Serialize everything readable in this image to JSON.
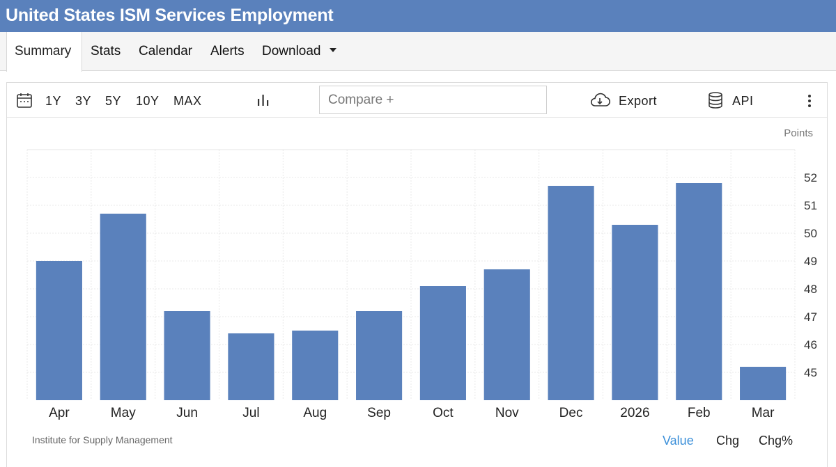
{
  "header": {
    "title": "United States ISM Services Employment"
  },
  "tabs": [
    {
      "label": "Summary"
    },
    {
      "label": "Stats"
    },
    {
      "label": "Calendar"
    },
    {
      "label": "Alerts"
    },
    {
      "label": "Download"
    }
  ],
  "toolbar": {
    "ranges": [
      "1Y",
      "3Y",
      "5Y",
      "10Y",
      "MAX"
    ],
    "compare_placeholder": "Compare +",
    "export_label": "Export",
    "api_label": "API"
  },
  "chart_data": {
    "type": "bar",
    "title": "",
    "xlabel": "",
    "ylabel": "Points",
    "ylim": [
      44,
      53
    ],
    "y_ticks": [
      45,
      46,
      47,
      48,
      49,
      50,
      51,
      52
    ],
    "categories": [
      "Apr",
      "May",
      "Jun",
      "Jul",
      "Aug",
      "Sep",
      "Oct",
      "Nov",
      "Dec",
      "2026",
      "Feb",
      "Mar"
    ],
    "values": [
      49.0,
      50.7,
      47.2,
      46.4,
      46.5,
      47.2,
      48.1,
      48.7,
      51.7,
      50.3,
      51.8,
      45.2
    ],
    "color": "#5a81bc",
    "grid": true
  },
  "footer": {
    "source": "Institute for Supply Management",
    "modes": [
      {
        "label": "Value"
      },
      {
        "label": "Chg"
      },
      {
        "label": "Chg%"
      }
    ]
  }
}
